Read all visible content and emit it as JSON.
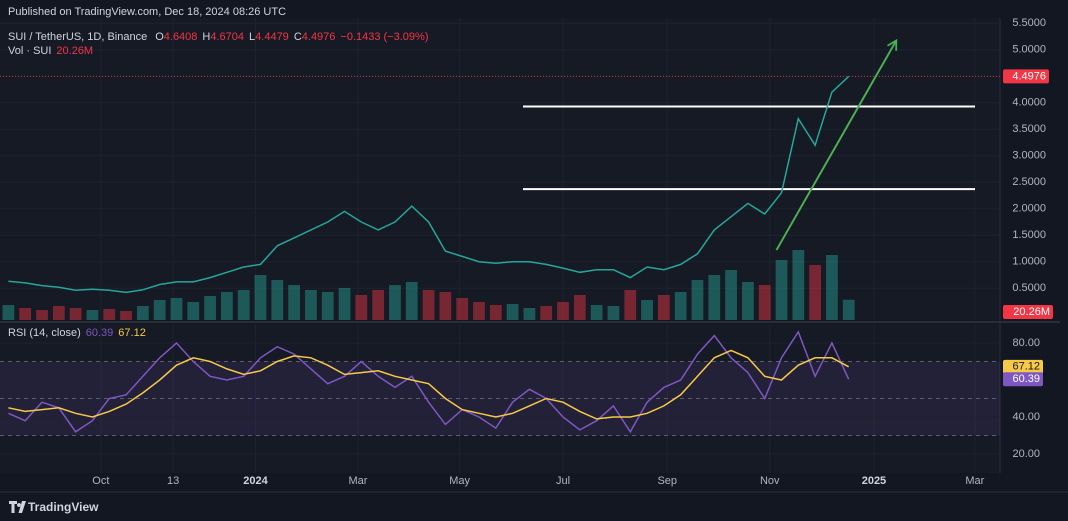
{
  "header": {
    "published": "Published on TradingView.com, Dec 18, 2024 08:26 UTC"
  },
  "footer": {
    "brand": "TradingView"
  },
  "chart_data": [
    {
      "type": "line",
      "title": "SUI / TetherUS, 1D, Binance",
      "ohlc": [
        {
          "label": "O",
          "value": 4.6408
        },
        {
          "label": "H",
          "value": 4.6704
        },
        {
          "label": "L",
          "value": 4.4479
        },
        {
          "label": "C",
          "value": 4.4976
        }
      ],
      "change": "−0.1433 (−3.09%)",
      "series": [
        {
          "color": "#26a69a",
          "values": [
            0.63,
            0.6,
            0.55,
            0.52,
            0.46,
            0.48,
            0.46,
            0.42,
            0.47,
            0.57,
            0.62,
            0.62,
            0.7,
            0.8,
            0.9,
            0.95,
            1.3,
            1.45,
            1.6,
            1.75,
            1.95,
            1.75,
            1.6,
            1.75,
            2.05,
            1.75,
            1.2,
            1.1,
            1.0,
            0.97,
            1.0,
            1.0,
            0.95,
            0.88,
            0.8,
            0.85,
            0.85,
            0.7,
            0.9,
            0.85,
            0.95,
            1.15,
            1.6,
            1.85,
            2.1,
            1.9,
            2.3,
            3.7,
            3.2,
            4.2,
            4.4976
          ]
        }
      ],
      "last_price": 4.4976,
      "last_price_color": "#f23645",
      "volume": {
        "label": "Vol · SUI",
        "value_label": "20.26M",
        "ylim": [
          0,
          302
        ],
        "up_color": "#26a69a",
        "down_color": "#f23645",
        "values": [
          15,
          12,
          10,
          14,
          12,
          10,
          11,
          9,
          14,
          20,
          22,
          18,
          24,
          28,
          30,
          45,
          40,
          35,
          30,
          28,
          32,
          25,
          30,
          35,
          38,
          30,
          28,
          22,
          18,
          15,
          16,
          12,
          14,
          18,
          25,
          15,
          14,
          30,
          20,
          25,
          28,
          40,
          45,
          50,
          38,
          35,
          60,
          70,
          55,
          65,
          20.26
        ]
      },
      "levels": [
        3.93,
        2.37
      ],
      "level_color": "#ffffff",
      "trend_arrow": {
        "x": [
          45.7,
          52.8
        ],
        "y": [
          1.22,
          5.16
        ],
        "color": "#4caf50"
      },
      "xlim": [
        -0.5,
        59
      ],
      "ylim": [
        -0.1,
        5.6
      ],
      "yticks": [
        {
          "value": 0.5,
          "label": "0.5000"
        },
        {
          "value": 1,
          "label": "1.0000"
        },
        {
          "value": 1.5,
          "label": "1.5000"
        },
        {
          "value": 2,
          "label": "2.0000"
        },
        {
          "value": 2.5,
          "label": "2.5000"
        },
        {
          "value": 3,
          "label": "3.0000"
        },
        {
          "value": 3.5,
          "label": "3.5000"
        },
        {
          "value": 4,
          "label": "4.0000"
        },
        {
          "value": 4.5,
          "label": "4.5000"
        },
        {
          "value": 5,
          "label": "5.0000"
        },
        {
          "value": 5.5,
          "label": "5.5000"
        }
      ],
      "grid": true
    },
    {
      "type": "line",
      "title": "RSI (14, close)",
      "series": [
        {
          "color": "#7e57c2",
          "values": [
            42,
            38,
            48,
            45,
            32,
            38,
            50,
            52,
            62,
            72,
            80,
            70,
            62,
            60,
            62,
            72,
            78,
            74,
            66,
            58,
            62,
            70,
            62,
            56,
            62,
            48,
            36,
            44,
            40,
            34,
            48,
            55,
            50,
            40,
            33,
            38,
            46,
            32,
            48,
            56,
            60,
            74,
            84,
            72,
            64,
            50,
            72,
            86,
            62,
            80,
            60.39
          ]
        },
        {
          "color": "#f7c948",
          "values": [
            45,
            43,
            44,
            45,
            42,
            40,
            43,
            47,
            53,
            60,
            68,
            72,
            70,
            66,
            63,
            65,
            70,
            73,
            72,
            68,
            63,
            64,
            65,
            62,
            60,
            58,
            50,
            44,
            42,
            40,
            42,
            46,
            50,
            48,
            43,
            39,
            40,
            40,
            42,
            46,
            52,
            62,
            72,
            76,
            72,
            62,
            60,
            68,
            72,
            72,
            67.12
          ]
        }
      ],
      "band": [
        30,
        70
      ],
      "midline": 50,
      "xlim": [
        -0.5,
        59
      ],
      "ylim": [
        10,
        90
      ],
      "yticks": [
        {
          "value": 20,
          "label": "20.00"
        },
        {
          "value": 40,
          "label": "40.00"
        },
        {
          "value": 80,
          "label": "80.00"
        }
      ],
      "xticks": [
        {
          "value": 5.5,
          "label": "Oct"
        },
        {
          "value": 9.8,
          "label": "13"
        },
        {
          "value": 14.7,
          "label": "2024"
        },
        {
          "value": 20.8,
          "label": "Mar"
        },
        {
          "value": 26.85,
          "label": "May"
        },
        {
          "value": 33.0,
          "label": "Jul"
        },
        {
          "value": 39.2,
          "label": "Sep"
        },
        {
          "value": 45.3,
          "label": "Nov"
        },
        {
          "value": 51.5,
          "label": "2025"
        },
        {
          "value": 57.5,
          "label": "Mar"
        }
      ],
      "grid": true
    }
  ]
}
